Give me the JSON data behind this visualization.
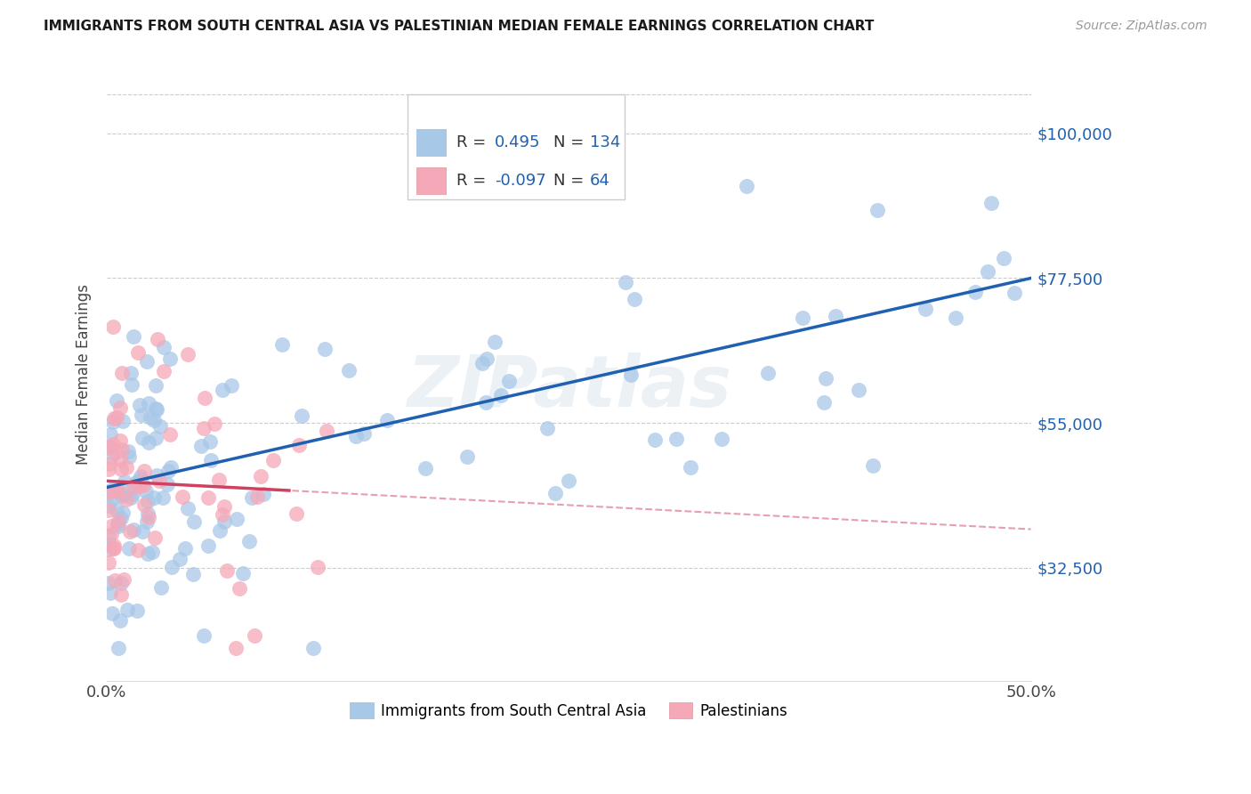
{
  "title": "IMMIGRANTS FROM SOUTH CENTRAL ASIA VS PALESTINIAN MEDIAN FEMALE EARNINGS CORRELATION CHART",
  "source": "Source: ZipAtlas.com",
  "ylabel": "Median Female Earnings",
  "y_ticks": [
    32500,
    55000,
    77500,
    100000
  ],
  "y_tick_labels": [
    "$32,500",
    "$55,000",
    "$77,500",
    "$100,000"
  ],
  "xmin": 0.0,
  "xmax": 0.5,
  "ymin": 15000,
  "ymax": 110000,
  "blue_color": "#a8c8e8",
  "pink_color": "#f5a8b8",
  "trend_blue": "#2060b0",
  "trend_pink": "#d04060",
  "legend_label_blue": "Immigrants from South Central Asia",
  "legend_label_pink": "Palestinians",
  "watermark": "ZIPatlas",
  "blue_intercept": 45000,
  "blue_slope": 65000,
  "pink_intercept": 46000,
  "pink_slope": -15000,
  "blue_R": "0.495",
  "blue_N": "134",
  "pink_R": "-0.097",
  "pink_N": "64"
}
